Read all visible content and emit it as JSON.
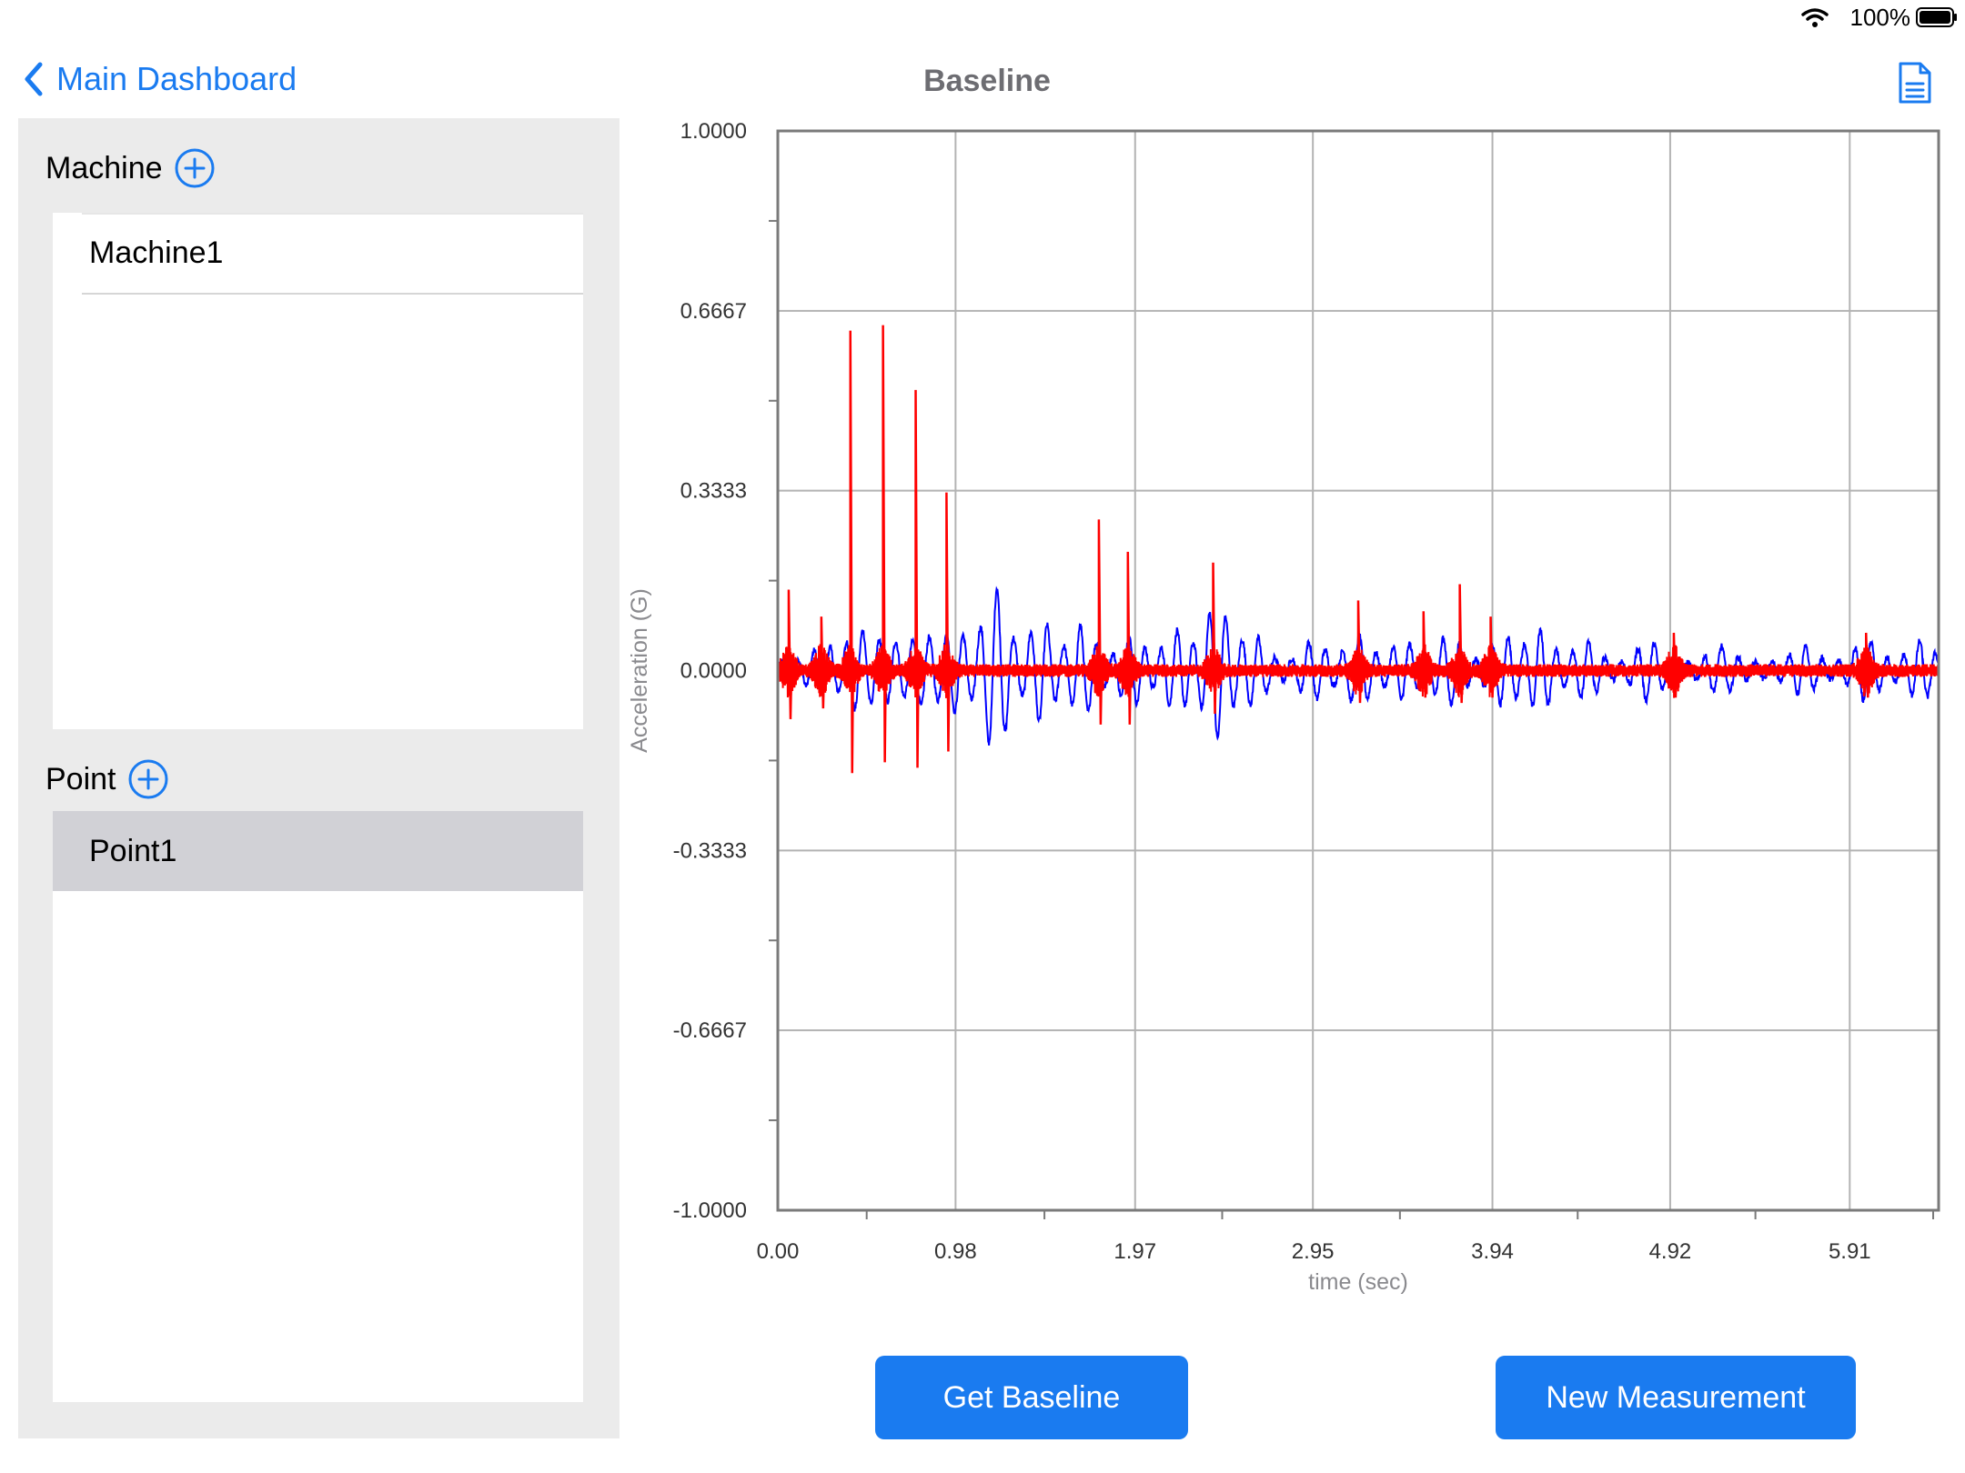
{
  "status_bar": {
    "battery_percent": "100%"
  },
  "nav": {
    "back_label": "Main Dashboard",
    "title": "Baseline"
  },
  "sidebar": {
    "machine_section": {
      "title": "Machine",
      "items": [
        "Machine1"
      ]
    },
    "point_section": {
      "title": "Point",
      "items": [
        "Point1"
      ],
      "selected_index": 0
    }
  },
  "buttons": {
    "get_baseline": "Get Baseline",
    "new_measurement": "New Measurement"
  },
  "colors": {
    "accent": "#1a7bf0",
    "series_blue": "#0000ff",
    "series_red": "#ff0000",
    "selected_row": "#d1d1d6",
    "sidebar_bg": "#ebebeb"
  },
  "chart_data": {
    "type": "line",
    "xlabel": "time (sec)",
    "ylabel": "Acceleration (G)",
    "x_ticks": [
      "0.00",
      "0.98",
      "1.97",
      "2.95",
      "3.94",
      "4.92",
      "5.91"
    ],
    "y_ticks": [
      "1.0000",
      "0.6667",
      "0.3333",
      "0.0000",
      "-0.3333",
      "-0.6667",
      "-1.0000"
    ],
    "xlim": [
      0,
      6.4
    ],
    "ylim": [
      -1,
      1
    ],
    "grid": true,
    "series": [
      {
        "color": "#0000ff",
        "values_desc": "low-frequency vibration waveform",
        "bursts": [
          {
            "t": 0.25,
            "amp": 0.03
          },
          {
            "t": 0.45,
            "amp": 0.06
          },
          {
            "t": 0.62,
            "amp": 0.04
          },
          {
            "t": 0.8,
            "amp": 0.05
          },
          {
            "t": 0.98,
            "amp": 0.06
          },
          {
            "t": 1.2,
            "amp": 0.14
          },
          {
            "t": 1.45,
            "amp": 0.08
          },
          {
            "t": 1.68,
            "amp": 0.07
          },
          {
            "t": 1.95,
            "amp": 0.05
          },
          {
            "t": 2.2,
            "amp": 0.06
          },
          {
            "t": 2.42,
            "amp": 0.11
          },
          {
            "t": 2.62,
            "amp": 0.05
          },
          {
            "t": 2.95,
            "amp": 0.04
          },
          {
            "t": 3.2,
            "amp": 0.05
          },
          {
            "t": 3.45,
            "amp": 0.04
          },
          {
            "t": 3.7,
            "amp": 0.05
          },
          {
            "t": 4.0,
            "amp": 0.05
          },
          {
            "t": 4.2,
            "amp": 0.06
          },
          {
            "t": 4.45,
            "amp": 0.04
          },
          {
            "t": 4.8,
            "amp": 0.04
          },
          {
            "t": 5.2,
            "amp": 0.03
          },
          {
            "t": 5.65,
            "amp": 0.03
          },
          {
            "t": 6.0,
            "amp": 0.04
          },
          {
            "t": 6.3,
            "amp": 0.04
          }
        ]
      },
      {
        "color": "#ff0000",
        "values_desc": "high-frequency signal with impulse spikes",
        "spikes": [
          {
            "t": 0.06,
            "up": 0.15,
            "down": -0.09
          },
          {
            "t": 0.24,
            "up": 0.1,
            "down": -0.07
          },
          {
            "t": 0.4,
            "up": 0.63,
            "down": -0.19
          },
          {
            "t": 0.58,
            "up": 0.64,
            "down": -0.17
          },
          {
            "t": 0.76,
            "up": 0.52,
            "down": -0.18
          },
          {
            "t": 0.93,
            "up": 0.33,
            "down": -0.15
          },
          {
            "t": 1.77,
            "up": 0.28,
            "down": -0.1
          },
          {
            "t": 1.93,
            "up": 0.22,
            "down": -0.1
          },
          {
            "t": 2.4,
            "up": 0.2,
            "down": -0.08
          },
          {
            "t": 3.2,
            "up": 0.13,
            "down": -0.06
          },
          {
            "t": 3.56,
            "up": 0.11,
            "down": -0.05
          },
          {
            "t": 3.76,
            "up": 0.16,
            "down": -0.06
          },
          {
            "t": 3.93,
            "up": 0.1,
            "down": -0.05
          },
          {
            "t": 4.94,
            "up": 0.07,
            "down": -0.05
          },
          {
            "t": 6.0,
            "up": 0.07,
            "down": -0.05
          }
        ]
      }
    ]
  }
}
